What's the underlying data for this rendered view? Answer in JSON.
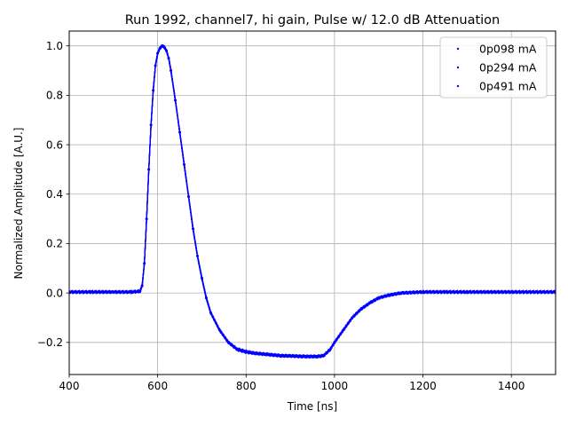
{
  "chart_data": {
    "type": "scatter",
    "title": "Run 1992, channel7, hi gain, Pulse w/ 12.0 dB Attenuation",
    "xlabel": "Time [ns]",
    "ylabel": "Normalized Amplitude [A.U.]",
    "xlim": [
      400,
      1500
    ],
    "ylim": [
      -0.33,
      1.06
    ],
    "xticks": [
      400,
      600,
      800,
      1000,
      1200,
      1400
    ],
    "yticks": [
      -0.2,
      0.0,
      0.2,
      0.4,
      0.6,
      0.8,
      1.0
    ],
    "ytick_labels": [
      "−0.2",
      "0.0",
      "0.2",
      "0.4",
      "0.6",
      "0.8",
      "1.0"
    ],
    "grid": true,
    "legend_position": "top-right",
    "series_color": "#0000ff",
    "series": [
      {
        "name": "0p098 mA",
        "x": [
          400,
          450,
          500,
          540,
          560,
          565,
          570,
          575,
          580,
          585,
          590,
          595,
          600,
          605,
          610,
          615,
          620,
          625,
          630,
          640,
          650,
          660,
          670,
          680,
          690,
          700,
          710,
          720,
          740,
          760,
          780,
          800,
          820,
          850,
          880,
          900,
          930,
          960,
          975,
          990,
          1000,
          1020,
          1040,
          1060,
          1080,
          1100,
          1120,
          1150,
          1200,
          1250,
          1300,
          1400,
          1500
        ],
        "y": [
          0.005,
          0.005,
          0.005,
          0.005,
          0.008,
          0.03,
          0.12,
          0.3,
          0.5,
          0.68,
          0.82,
          0.92,
          0.97,
          0.99,
          1.0,
          0.995,
          0.98,
          0.95,
          0.9,
          0.78,
          0.65,
          0.52,
          0.39,
          0.26,
          0.15,
          0.06,
          -0.02,
          -0.08,
          -0.15,
          -0.2,
          -0.23,
          -0.24,
          -0.245,
          -0.25,
          -0.255,
          -0.255,
          -0.258,
          -0.258,
          -0.255,
          -0.23,
          -0.2,
          -0.15,
          -0.1,
          -0.065,
          -0.04,
          -0.02,
          -0.01,
          0.0,
          0.005,
          0.005,
          0.005,
          0.005,
          0.005
        ]
      },
      {
        "name": "0p294 mA",
        "x": [
          400,
          450,
          500,
          540,
          560,
          565,
          570,
          575,
          580,
          585,
          590,
          595,
          600,
          605,
          610,
          615,
          620,
          625,
          630,
          640,
          650,
          660,
          670,
          680,
          690,
          700,
          710,
          720,
          740,
          760,
          780,
          800,
          820,
          850,
          880,
          900,
          930,
          960,
          975,
          990,
          1000,
          1020,
          1040,
          1060,
          1080,
          1100,
          1120,
          1150,
          1200,
          1250,
          1300,
          1400,
          1500
        ],
        "y": [
          0.004,
          0.004,
          0.004,
          0.004,
          0.007,
          0.03,
          0.12,
          0.3,
          0.5,
          0.68,
          0.82,
          0.92,
          0.97,
          0.99,
          1.0,
          0.995,
          0.98,
          0.95,
          0.9,
          0.78,
          0.65,
          0.52,
          0.39,
          0.26,
          0.15,
          0.06,
          -0.02,
          -0.08,
          -0.15,
          -0.2,
          -0.228,
          -0.238,
          -0.244,
          -0.249,
          -0.254,
          -0.255,
          -0.257,
          -0.257,
          -0.254,
          -0.229,
          -0.2,
          -0.15,
          -0.1,
          -0.065,
          -0.04,
          -0.02,
          -0.01,
          0.0,
          0.004,
          0.004,
          0.004,
          0.004,
          0.004
        ]
      },
      {
        "name": "0p491 mA",
        "x": [
          400,
          450,
          500,
          540,
          560,
          565,
          570,
          575,
          580,
          585,
          590,
          595,
          600,
          605,
          610,
          615,
          620,
          625,
          630,
          640,
          650,
          660,
          670,
          680,
          690,
          700,
          710,
          720,
          740,
          760,
          780,
          800,
          820,
          850,
          880,
          900,
          930,
          960,
          975,
          990,
          1000,
          1020,
          1040,
          1060,
          1080,
          1100,
          1120,
          1150,
          1200,
          1250,
          1300,
          1400,
          1500
        ],
        "y": [
          0.003,
          0.003,
          0.003,
          0.003,
          0.006,
          0.03,
          0.12,
          0.3,
          0.5,
          0.68,
          0.82,
          0.92,
          0.97,
          0.99,
          1.0,
          0.995,
          0.98,
          0.95,
          0.9,
          0.78,
          0.65,
          0.52,
          0.39,
          0.26,
          0.15,
          0.06,
          -0.02,
          -0.08,
          -0.15,
          -0.2,
          -0.226,
          -0.236,
          -0.243,
          -0.248,
          -0.253,
          -0.254,
          -0.256,
          -0.256,
          -0.253,
          -0.228,
          -0.2,
          -0.15,
          -0.1,
          -0.065,
          -0.04,
          -0.02,
          -0.01,
          0.0,
          0.003,
          0.003,
          0.003,
          0.003,
          0.003
        ]
      }
    ]
  }
}
